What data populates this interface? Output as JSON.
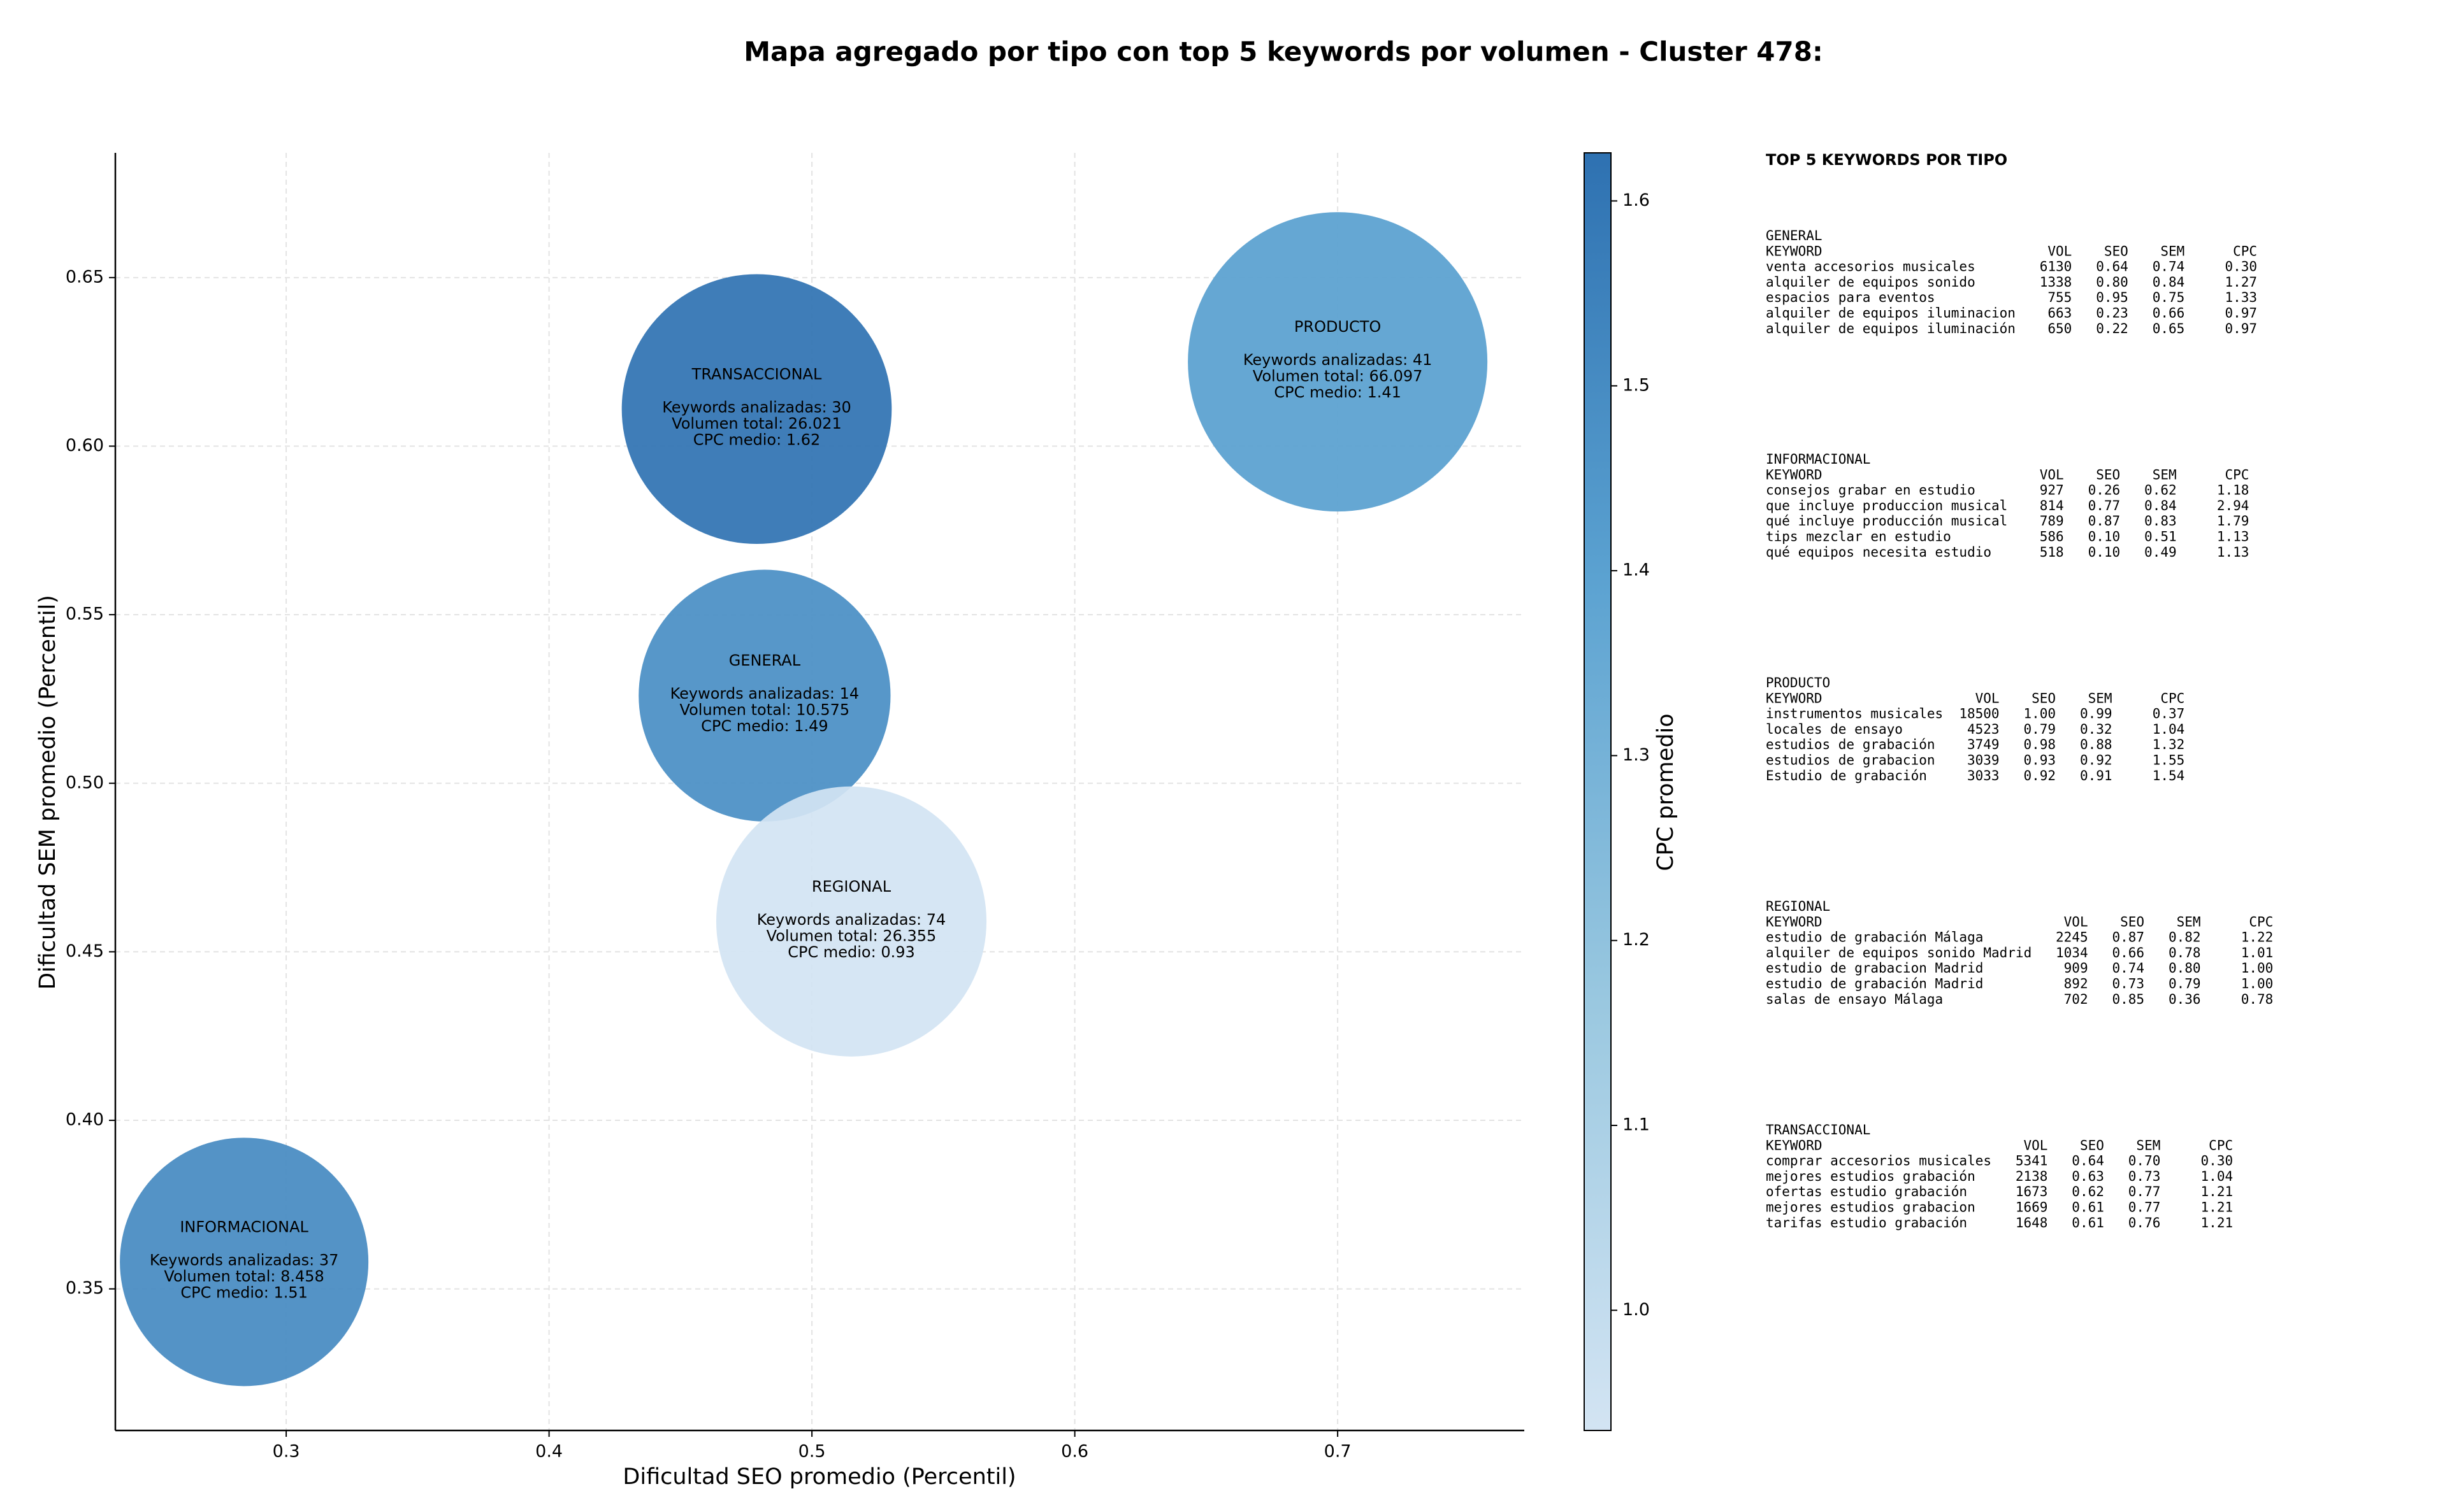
{
  "chart_data": {
    "type": "bubble",
    "title": "Mapa agregado por tipo con top 5 keywords por volumen - Cluster 478:",
    "xlabel": "Dificultad SEO promedio (Percentil)",
    "ylabel": "Dificultad SEM promedio (Percentil)",
    "xlim": [
      0.235,
      0.771
    ],
    "ylim": [
      0.308,
      0.687
    ],
    "xticks": [
      0.3,
      0.4,
      0.5,
      0.6,
      0.7
    ],
    "yticks": [
      0.35,
      {
        "value": 0.4,
        "label": "0.40"
      },
      0.45,
      {
        "value": 0.5,
        "label": "0.50"
      },
      0.55,
      {
        "value": 0.6,
        "label": "0.60"
      },
      0.65
    ],
    "grid": true,
    "points": [
      {
        "label": "TRANSACCIONAL",
        "x": 0.479,
        "y": 0.611,
        "keywords": 30,
        "volume": 26021,
        "cpc": 1.62,
        "lines": [
          "Keywords analizadas: 30",
          "Volumen total: 26.021",
          "CPC medio: 1.62"
        ]
      },
      {
        "label": "PRODUCTO",
        "x": 0.7,
        "y": 0.625,
        "keywords": 41,
        "volume": 66097,
        "cpc": 1.41,
        "lines": [
          "Keywords analizadas: 41",
          "Volumen total: 66.097",
          "CPC medio: 1.41"
        ]
      },
      {
        "label": "GENERAL",
        "x": 0.482,
        "y": 0.526,
        "keywords": 14,
        "volume": 10575,
        "cpc": 1.49,
        "lines": [
          "Keywords analizadas: 14",
          "Volumen total: 10.575",
          "CPC medio: 1.49"
        ]
      },
      {
        "label": "REGIONAL",
        "x": 0.515,
        "y": 0.459,
        "keywords": 74,
        "volume": 26355,
        "cpc": 0.93,
        "lines": [
          "Keywords analizadas: 74",
          "Volumen total: 26.355",
          "CPC medio: 0.93"
        ]
      },
      {
        "label": "INFORMACIONAL",
        "x": 0.284,
        "y": 0.358,
        "keywords": 37,
        "volume": 8458,
        "cpc": 1.51,
        "lines": [
          "Keywords analizadas: 37",
          "Volumen total: 8.458",
          "CPC medio: 1.51"
        ]
      }
    ],
    "colorbar": {
      "label": "CPC promedio",
      "lim": [
        0.935,
        1.626
      ],
      "ticks": [
        {
          "value": 1.0,
          "label": "1.0"
        },
        1.1,
        1.2,
        1.3,
        1.4,
        1.5,
        1.6
      ],
      "colors": [
        "#d3e4f3",
        "#9ac8e0",
        "#5ba2d1",
        "#2e71b1"
      ]
    },
    "panel": {
      "title": "TOP 5 KEYWORDS POR TIPO",
      "header": [
        "KEYWORD",
        "VOL",
        "SEO",
        "SEM",
        "CPC"
      ],
      "groups": [
        {
          "name": "GENERAL",
          "rows": [
            [
              "venta accesorios musicales",
              "6130",
              "0.64",
              "0.74",
              "0.30"
            ],
            [
              "alquiler de equipos sonido",
              "1338",
              "0.80",
              "0.84",
              "1.27"
            ],
            [
              "espacios para eventos",
              "755",
              "0.95",
              "0.75",
              "1.33"
            ],
            [
              "alquiler de equipos iluminacion",
              "663",
              "0.23",
              "0.66",
              "0.97"
            ],
            [
              "alquiler de equipos iluminación",
              "650",
              "0.22",
              "0.65",
              "0.97"
            ]
          ]
        },
        {
          "name": "INFORMACIONAL",
          "rows": [
            [
              "consejos grabar en estudio",
              "927",
              "0.26",
              "0.62",
              "1.18"
            ],
            [
              "que incluye produccion musical",
              "814",
              "0.77",
              "0.84",
              "2.94"
            ],
            [
              "qué incluye producción musical",
              "789",
              "0.87",
              "0.83",
              "1.79"
            ],
            [
              "tips mezclar en estudio",
              "586",
              "0.10",
              "0.51",
              "1.13"
            ],
            [
              "qué equipos necesita estudio",
              "518",
              "0.10",
              "0.49",
              "1.13"
            ]
          ]
        },
        {
          "name": "PRODUCTO",
          "rows": [
            [
              "instrumentos musicales",
              "18500",
              "1.00",
              "0.99",
              "0.37"
            ],
            [
              "locales de ensayo",
              "4523",
              "0.79",
              "0.32",
              "1.04"
            ],
            [
              "estudios de grabación",
              "3749",
              "0.98",
              "0.88",
              "1.32"
            ],
            [
              "estudios de grabacion",
              "3039",
              "0.93",
              "0.92",
              "1.55"
            ],
            [
              "Estudio de grabación",
              "3033",
              "0.92",
              "0.91",
              "1.54"
            ]
          ]
        },
        {
          "name": "REGIONAL",
          "rows": [
            [
              "estudio de grabación Málaga",
              "2245",
              "0.87",
              "0.82",
              "1.22"
            ],
            [
              "alquiler de equipos sonido Madrid",
              "1034",
              "0.66",
              "0.78",
              "1.01"
            ],
            [
              "estudio de grabacion Madrid",
              "909",
              "0.74",
              "0.80",
              "1.00"
            ],
            [
              "estudio de grabación Madrid",
              "892",
              "0.73",
              "0.79",
              "1.00"
            ],
            [
              "salas de ensayo Málaga",
              "702",
              "0.85",
              "0.36",
              "0.78"
            ]
          ]
        },
        {
          "name": "TRANSACCIONAL",
          "rows": [
            [
              "comprar accesorios musicales",
              "5341",
              "0.64",
              "0.70",
              "0.30"
            ],
            [
              "mejores estudios grabación",
              "2138",
              "0.63",
              "0.73",
              "1.04"
            ],
            [
              "ofertas estudio grabación",
              "1673",
              "0.62",
              "0.77",
              "1.21"
            ],
            [
              "mejores estudios grabacion",
              "1669",
              "0.61",
              "0.77",
              "1.21"
            ],
            [
              "tarifas estudio grabación",
              "1648",
              "0.61",
              "0.76",
              "1.21"
            ]
          ]
        }
      ]
    }
  }
}
